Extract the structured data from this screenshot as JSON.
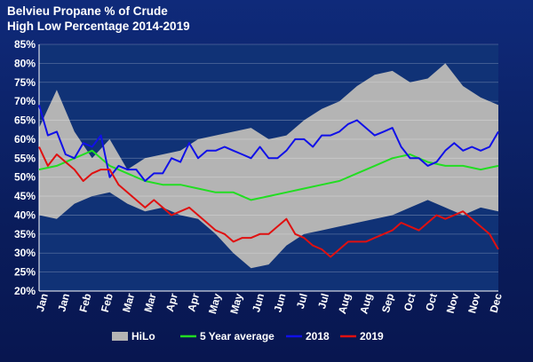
{
  "chart_data": {
    "type": "area",
    "title": "Belvieu Propane % of Crude",
    "subtitle": "High Low Percentage 2014-2019",
    "xlabel": "",
    "ylabel": "",
    "ylim": [
      20,
      85
    ],
    "y_ticks": [
      "20%",
      "25%",
      "30%",
      "35%",
      "40%",
      "45%",
      "50%",
      "55%",
      "60%",
      "65%",
      "70%",
      "75%",
      "80%",
      "85%"
    ],
    "x_tick_labels": [
      "Jan",
      "Jan",
      "Feb",
      "Feb",
      "Mar",
      "Mar",
      "Apr",
      "Apr",
      "May",
      "May",
      "Jun",
      "Jun",
      "Jul",
      "Jul",
      "Aug",
      "Aug",
      "Sep",
      "Oct",
      "Oct",
      "Nov",
      "Nov",
      "Dec"
    ],
    "grid": true,
    "legend": "bottom",
    "colors": {
      "hilo": "#b4b4b4",
      "avg5": "#22dd22",
      "y2018": "#1010e8",
      "y2019": "#e01010",
      "plot_bg": "#103276"
    },
    "series": [
      {
        "name": "HiLo",
        "x": [
          0,
          2,
          4,
          6,
          8,
          10,
          12,
          14,
          16,
          18,
          20,
          22,
          24,
          26,
          28,
          30,
          32,
          34,
          36,
          38,
          40,
          42,
          44,
          46,
          48,
          50,
          52
        ],
        "high": [
          63,
          73,
          62,
          55,
          60,
          52,
          55,
          56,
          57,
          60,
          61,
          62,
          63,
          60,
          61,
          65,
          68,
          70,
          74,
          77,
          78,
          75,
          76,
          80,
          74,
          71,
          69
        ],
        "low": [
          40,
          39,
          43,
          45,
          46,
          43,
          41,
          42,
          40,
          39,
          35,
          30,
          26,
          27,
          32,
          35,
          36,
          37,
          38,
          39,
          40,
          42,
          44,
          42,
          40,
          42,
          41
        ]
      },
      {
        "name": "5 Year average",
        "x": [
          0,
          2,
          4,
          6,
          8,
          10,
          12,
          14,
          16,
          18,
          20,
          22,
          24,
          26,
          28,
          30,
          32,
          34,
          36,
          38,
          40,
          42,
          44,
          46,
          48,
          50,
          52
        ],
        "values": [
          52,
          53,
          55,
          57,
          53,
          51,
          49,
          48,
          48,
          47,
          46,
          46,
          44,
          45,
          46,
          47,
          48,
          49,
          51,
          53,
          55,
          56,
          54,
          53,
          53,
          52,
          53
        ]
      },
      {
        "name": "2018",
        "x": [
          0,
          1,
          2,
          3,
          4,
          5,
          6,
          7,
          8,
          9,
          10,
          11,
          12,
          13,
          14,
          15,
          16,
          17,
          18,
          19,
          20,
          21,
          22,
          23,
          24,
          25,
          26,
          27,
          28,
          29,
          30,
          31,
          32,
          33,
          34,
          35,
          36,
          37,
          38,
          39,
          40,
          41,
          42,
          43,
          44,
          45,
          46,
          47,
          48,
          49,
          50,
          51,
          52
        ],
        "values": [
          69,
          61,
          62,
          56,
          55,
          59,
          58,
          61,
          50,
          53,
          52,
          52,
          49,
          51,
          51,
          55,
          54,
          59,
          55,
          57,
          57,
          58,
          57,
          56,
          55,
          58,
          55,
          55,
          57,
          60,
          60,
          58,
          61,
          61,
          62,
          64,
          65,
          63,
          61,
          62,
          63,
          58,
          55,
          55,
          53,
          54,
          57,
          59,
          57,
          58,
          57,
          58,
          62
        ]
      },
      {
        "name": "2019",
        "x": [
          0,
          1,
          2,
          3,
          4,
          5,
          6,
          7,
          8,
          9,
          10,
          11,
          12,
          13,
          14,
          15,
          16,
          17,
          18,
          19,
          20,
          21,
          22,
          23,
          24,
          25,
          26,
          27,
          28,
          29,
          30,
          31,
          32,
          33,
          34,
          35,
          36,
          37,
          38,
          39,
          40,
          41,
          42,
          43,
          44,
          45,
          46,
          47,
          48,
          49,
          50,
          51,
          52
        ],
        "values": [
          58,
          53,
          56,
          54,
          52,
          49,
          51,
          52,
          52,
          48,
          46,
          44,
          42,
          44,
          42,
          40,
          41,
          42,
          40,
          38,
          36,
          35,
          33,
          34,
          34,
          35,
          35,
          37,
          39,
          35,
          34,
          32,
          31,
          29,
          31,
          33,
          33,
          33,
          34,
          35,
          36,
          38,
          37,
          36,
          38,
          40,
          39,
          40,
          41,
          39,
          37,
          35,
          31
        ]
      }
    ]
  }
}
